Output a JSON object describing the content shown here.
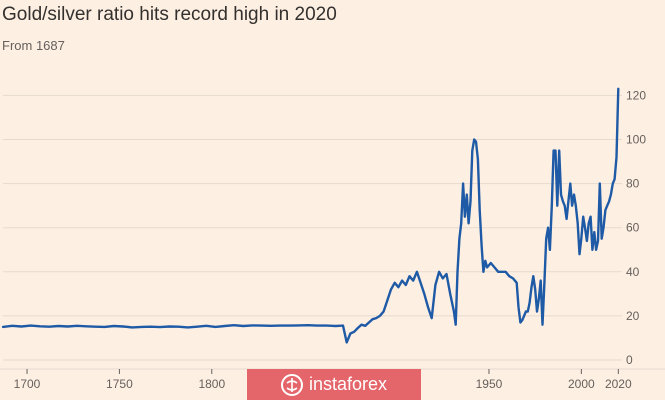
{
  "colors": {
    "background": "#fdf0e3",
    "line": "#1f5aa6",
    "grid": "#e6d9ce",
    "text": "#66605c",
    "watermark_bg": "#e4666a"
  },
  "watermark": {
    "text": "instaforex",
    "icon": "instaforex-logo-icon"
  },
  "chart_data": {
    "type": "line",
    "title": "Gold/silver ratio hits record high in 2020",
    "subtitle": "From 1687",
    "xlabel": "",
    "ylabel": "",
    "xlim": [
      1687,
      2022
    ],
    "ylim": [
      0,
      127
    ],
    "x_ticks": [
      1700,
      1750,
      1800,
      1950,
      2000,
      2020
    ],
    "y_ticks": [
      0,
      20,
      40,
      60,
      80,
      100,
      120
    ],
    "grid": true,
    "series": [
      {
        "x": [
          1687,
          1692,
          1697,
          1702,
          1707,
          1712,
          1717,
          1722,
          1727,
          1732,
          1737,
          1742,
          1747,
          1752,
          1757,
          1762,
          1767,
          1772,
          1777,
          1782,
          1787,
          1792,
          1797,
          1802,
          1807,
          1812,
          1817,
          1822,
          1827,
          1832,
          1837,
          1842,
          1847,
          1852,
          1857,
          1862,
          1865,
          1867,
          1869,
          1871,
          1873,
          1875,
          1877,
          1879,
          1881,
          1883,
          1885,
          1887,
          1889,
          1891,
          1893,
          1895,
          1897,
          1899,
          1901,
          1903,
          1905,
          1907,
          1909,
          1911,
          1913,
          1915,
          1917,
          1919,
          1921,
          1923,
          1925,
          1927,
          1929,
          1931,
          1932,
          1933,
          1934,
          1935,
          1936,
          1937,
          1938,
          1939,
          1940,
          1941,
          1942,
          1943,
          1944,
          1945,
          1946,
          1947,
          1948,
          1949,
          1951,
          1953,
          1955,
          1957,
          1959,
          1961,
          1963,
          1965,
          1966,
          1967,
          1968,
          1969,
          1970,
          1971,
          1972,
          1973,
          1974,
          1975,
          1976,
          1977,
          1978,
          1979,
          1980,
          1981,
          1982,
          1983,
          1984,
          1985,
          1986,
          1987,
          1988,
          1989,
          1990,
          1991,
          1992,
          1993,
          1994,
          1995,
          1996,
          1997,
          1998,
          1999,
          2000,
          2001,
          2002,
          2003,
          2004,
          2005,
          2006,
          2007,
          2008,
          2009,
          2010,
          2011,
          2012,
          2013,
          2014,
          2015,
          2016,
          2017,
          2018,
          2019,
          2020
        ],
        "values": [
          15,
          15.5,
          15.2,
          15.6,
          15.3,
          15.1,
          15.4,
          15.2,
          15.5,
          15.3,
          15.1,
          15,
          15.4,
          15.2,
          14.8,
          15,
          15.1,
          14.9,
          15.2,
          15.1,
          14.8,
          15.1,
          15.5,
          15,
          15.4,
          15.8,
          15.4,
          15.7,
          15.6,
          15.5,
          15.6,
          15.6,
          15.7,
          15.8,
          15.6,
          15.6,
          15.5,
          15.4,
          15.5,
          15.6,
          8,
          12,
          12.8,
          14.5,
          16,
          15.5,
          17,
          18.5,
          19,
          20,
          22,
          27,
          32,
          35,
          33,
          36,
          34,
          38,
          36,
          40,
          35,
          30,
          24,
          19,
          34,
          40,
          37,
          39,
          30,
          22,
          16,
          40,
          55,
          62,
          80,
          65,
          75,
          62,
          72,
          95,
          100,
          99,
          91,
          68,
          52,
          40,
          45,
          42,
          44,
          42,
          40,
          40,
          40,
          38,
          37,
          35,
          24,
          17,
          18,
          20,
          22,
          22,
          26,
          33,
          38,
          32,
          22,
          28,
          36,
          16,
          35,
          55,
          60,
          50,
          70,
          95,
          95,
          70,
          95,
          75,
          72,
          70,
          64,
          72,
          80,
          70,
          75,
          70,
          62,
          48,
          55,
          65,
          60,
          54,
          62,
          65,
          50,
          58,
          50,
          54,
          80,
          55,
          60,
          68,
          70,
          72,
          75,
          80,
          82,
          92,
          123
        ]
      }
    ]
  }
}
